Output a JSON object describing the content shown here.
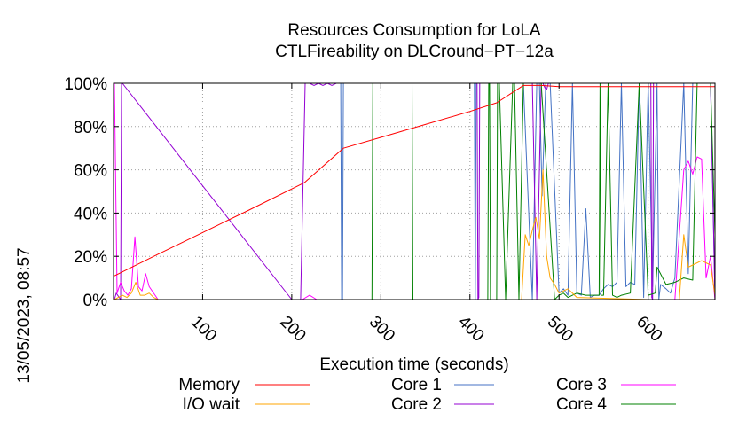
{
  "timestamp": "13/05/2023, 08:57",
  "chart_data": {
    "type": "line",
    "title": "Resources Consumption for LoLA",
    "subtitle": "CTLFireability on DLCround−PT−12a",
    "xlabel": "Execution time (seconds)",
    "ylabel": "",
    "xlim": [
      0,
      675
    ],
    "ylim": [
      0,
      100
    ],
    "x_ticks": [
      100,
      200,
      300,
      400,
      500,
      600
    ],
    "y_ticks": [
      "0%",
      "20%",
      "40%",
      "60%",
      "80%",
      "100%"
    ],
    "grid": true,
    "legend_position": "bottom",
    "series": [
      {
        "name": "Memory",
        "color": "#ff0000",
        "x": [
          1,
          50,
          100,
          150,
          214,
          258,
          300,
          350,
          400,
          430,
          460,
          480,
          500,
          550,
          600,
          650,
          675
        ],
        "y": [
          11,
          21,
          31,
          41,
          54,
          70,
          75,
          81,
          87,
          91,
          99,
          99,
          98.5,
          98.5,
          98.5,
          98.5,
          98.5
        ]
      },
      {
        "name": "I/O wait",
        "color": "#ffa500",
        "x": [
          1,
          10,
          15,
          20,
          25,
          30,
          35,
          40,
          45,
          50,
          80,
          150,
          210,
          300,
          400,
          458,
          462,
          466,
          470,
          474,
          478,
          482,
          486,
          490,
          495,
          500,
          510,
          520,
          600,
          635,
          640,
          645,
          650,
          660,
          670,
          675
        ],
        "y": [
          0,
          2,
          1,
          3,
          8,
          2,
          2,
          3,
          1,
          0,
          0,
          0,
          0,
          0,
          0,
          0,
          30,
          25,
          32,
          38,
          28,
          60,
          20,
          10,
          7,
          3,
          5,
          1,
          0,
          0,
          30,
          15,
          16,
          18,
          16,
          2
        ]
      },
      {
        "name": "Core 1",
        "color": "#4472c4",
        "x": [
          1,
          2,
          3,
          80,
          255,
          256,
          257,
          258,
          259,
          400,
          405,
          406,
          407,
          408,
          409,
          410,
          430,
          440,
          445,
          450,
          455,
          460,
          470,
          475,
          478,
          481,
          485,
          490,
          500,
          505,
          510,
          515,
          520,
          525,
          530,
          535,
          540,
          545,
          550,
          555,
          560,
          565,
          570,
          575,
          580,
          585,
          590,
          595,
          600,
          605,
          610,
          612,
          614,
          620,
          625,
          630,
          640,
          645,
          650,
          660,
          670,
          675
        ],
        "y": [
          100,
          100,
          100,
          100,
          100,
          0,
          0,
          100,
          100,
          100,
          100,
          0,
          100,
          100,
          100,
          100,
          100,
          100,
          100,
          100,
          100,
          100,
          0,
          100,
          100,
          48,
          100,
          100,
          3,
          5,
          2,
          100,
          3,
          2,
          42,
          1,
          2,
          2,
          5,
          7,
          6,
          8,
          100,
          6,
          8,
          7,
          100,
          1,
          100,
          6,
          100,
          0,
          7,
          5,
          3,
          10,
          100,
          12,
          100,
          100,
          100,
          0
        ]
      },
      {
        "name": "Core 2",
        "color": "#9400d3",
        "x": [
          1,
          3,
          8,
          9,
          10,
          200,
          210,
          215,
          220,
          225,
          230,
          235,
          240,
          245,
          250,
          255,
          260,
          300,
          330,
          400,
          408,
          409,
          410,
          411,
          420,
          430,
          440,
          450,
          460,
          470,
          475,
          480,
          482,
          484,
          486,
          488,
          490,
          600,
          603,
          604,
          605,
          606,
          640,
          660,
          670,
          675
        ],
        "y": [
          0,
          3,
          0,
          100,
          100,
          0,
          0,
          100,
          100,
          99,
          100,
          99,
          100,
          99,
          100,
          100,
          100,
          100,
          100,
          100,
          100,
          0,
          1,
          100,
          100,
          100,
          100,
          100,
          100,
          100,
          0,
          100,
          100,
          98,
          97,
          100,
          100,
          100,
          100,
          1,
          0,
          100,
          100,
          100,
          100,
          0
        ]
      },
      {
        "name": "Core 3",
        "color": "#ff00ff",
        "x": [
          1,
          4,
          8,
          12,
          16,
          20,
          24,
          28,
          32,
          36,
          40,
          50,
          80,
          150,
          212,
          220,
          228,
          240,
          270,
          300,
          400,
          450,
          460,
          470,
          480,
          485,
          490,
          500,
          600,
          630,
          640,
          645,
          650,
          655,
          660,
          665,
          670,
          675
        ],
        "y": [
          100,
          3,
          8,
          4,
          2,
          5,
          29,
          6,
          4,
          12,
          6,
          0,
          0,
          0,
          0,
          2,
          0,
          0,
          0,
          0,
          0,
          0,
          0,
          0,
          0,
          0,
          0,
          0,
          0,
          0,
          60,
          64,
          58,
          66,
          65,
          10,
          20,
          0
        ]
      },
      {
        "name": "Core 4",
        "color": "#008000",
        "x": [
          1,
          100,
          200,
          290,
          291,
          292,
          293,
          335,
          336,
          337,
          338,
          410,
          420,
          421,
          422,
          423,
          430,
          431,
          432,
          433,
          440,
          448,
          450,
          455,
          460,
          470,
          480,
          495,
          500,
          505,
          510,
          520,
          530,
          540,
          545,
          546,
          547,
          550,
          555,
          560,
          565,
          570,
          580,
          590,
          600,
          608,
          610,
          620,
          630,
          640,
          650,
          655,
          660,
          670,
          675
        ],
        "y": [
          0,
          0,
          0,
          0,
          100,
          100,
          100,
          100,
          0,
          0,
          0,
          0,
          0,
          100,
          100,
          0,
          0,
          100,
          100,
          100,
          0,
          100,
          100,
          0,
          100,
          100,
          100,
          0,
          2,
          3,
          1,
          3,
          2,
          2,
          2,
          100,
          2,
          2,
          100,
          2,
          1,
          2,
          3,
          100,
          2,
          3,
          15,
          7,
          8,
          10,
          9,
          100,
          100,
          100,
          30
        ]
      }
    ]
  }
}
